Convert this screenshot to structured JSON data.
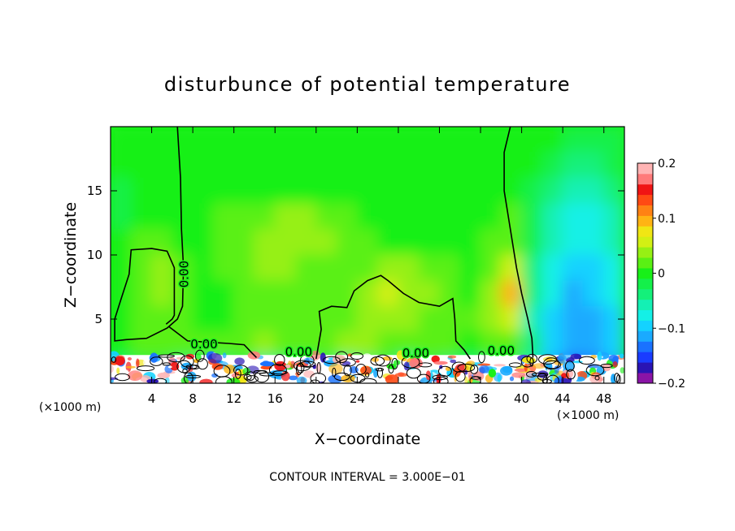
{
  "chart_data": {
    "type": "heatmap",
    "title": "disturbunce of potential temperature",
    "xlabel": "X−coordinate",
    "ylabel": "Z−coordinate",
    "x_unit_left": "(×1000 m)",
    "x_unit_right": "(×1000 m)",
    "footer": "CONTOUR INTERVAL = 3.000E−01",
    "xlim": [
      0,
      50
    ],
    "ylim": [
      0,
      20
    ],
    "x_ticks": [
      4,
      8,
      12,
      16,
      20,
      24,
      28,
      32,
      36,
      40,
      44,
      48
    ],
    "x_tick_labels": [
      "4",
      "8",
      "12",
      "16",
      "20",
      "24",
      "28",
      "32",
      "36",
      "40",
      "44",
      "48"
    ],
    "y_ticks": [
      5,
      10,
      15
    ],
    "y_tick_labels": [
      "5",
      "10",
      "15"
    ],
    "colorbar": {
      "range": [
        -0.2,
        0.2
      ],
      "tick_labels": [
        {
          "value": 0.2,
          "label": "0.2"
        },
        {
          "value": 0.1,
          "label": "0.1"
        },
        {
          "value": 0,
          "label": "0"
        },
        {
          "value": -0.1,
          "label": "−0.1"
        },
        {
          "value": -0.2,
          "label": "−0.2"
        }
      ],
      "colors": [
        "#8a14a6",
        "#2a14b4",
        "#1a3cff",
        "#1a72ff",
        "#1aaaff",
        "#14d2ff",
        "#14f0e6",
        "#14f0b4",
        "#14f07a",
        "#14f04a",
        "#18f018",
        "#5af014",
        "#96f014",
        "#d2f014",
        "#f0e614",
        "#ffb414",
        "#ff8214",
        "#ff4a14",
        "#f01414",
        "#ff7a7a",
        "#ffb4b4"
      ]
    },
    "contour_labels": [
      {
        "text": "0.00",
        "x": 7.2,
        "y": 8.5,
        "rotate": -90
      },
      {
        "text": "0.00",
        "x": 9.1,
        "y": 3.0
      },
      {
        "text": "0.00",
        "x": 18.3,
        "y": 2.4
      },
      {
        "text": "0.00",
        "x": 29.7,
        "y": 2.3
      },
      {
        "text": "0.00",
        "x": 38.0,
        "y": 2.5
      }
    ],
    "zero_contours": [
      [
        [
          6.5,
          20
        ],
        [
          6.8,
          16
        ],
        [
          6.9,
          12
        ],
        [
          7.1,
          9
        ],
        [
          7.0,
          6
        ],
        [
          6.5,
          5
        ],
        [
          5.5,
          4.3
        ],
        [
          3.5,
          3.5
        ],
        [
          1.5,
          3.4
        ],
        [
          0.4,
          3.3
        ],
        [
          0.4,
          5
        ],
        [
          1.0,
          6.5
        ],
        [
          1.8,
          8.5
        ],
        [
          2.0,
          10.4
        ],
        [
          4.0,
          10.5
        ],
        [
          5.5,
          10.3
        ],
        [
          6.2,
          9
        ],
        [
          6.2,
          5.3
        ],
        [
          6.0,
          5.0
        ],
        [
          5.4,
          4.6
        ]
      ],
      [
        [
          5.7,
          4.4
        ],
        [
          7.5,
          3.3
        ],
        [
          11.5,
          3.1
        ],
        [
          13.0,
          3.0
        ],
        [
          13.7,
          2.4
        ],
        [
          14.2,
          2.0
        ]
      ],
      [
        [
          20.0,
          1.9
        ],
        [
          20.5,
          4.2
        ],
        [
          20.3,
          5.6
        ],
        [
          21.5,
          6.0
        ],
        [
          23.0,
          5.9
        ],
        [
          23.7,
          7.2
        ],
        [
          25.0,
          8.0
        ],
        [
          26.3,
          8.4
        ],
        [
          27.0,
          8.0
        ],
        [
          28.5,
          7.0
        ],
        [
          30.0,
          6.3
        ],
        [
          32.0,
          6.0
        ],
        [
          33.3,
          6.6
        ],
        [
          33.5,
          5.0
        ],
        [
          33.6,
          3.3
        ],
        [
          34.4,
          2.6
        ],
        [
          35.0,
          1.9
        ]
      ],
      [
        [
          38.9,
          20
        ],
        [
          38.3,
          18
        ],
        [
          38.3,
          15
        ],
        [
          38.9,
          12
        ],
        [
          39.5,
          9
        ],
        [
          40.0,
          7
        ],
        [
          40.6,
          5
        ],
        [
          41.0,
          3.5
        ],
        [
          41.1,
          2.0
        ]
      ]
    ],
    "mean_field": [
      [
        0.0,
        0.0,
        0.0,
        0.0,
        0.0,
        0.0,
        0.0,
        0.0,
        0.0,
        0.0,
        0.0,
        0.0,
        0.0,
        0.0,
        0.0,
        0.0,
        0.0,
        0.0,
        0.0,
        0.0,
        0.0,
        0.0,
        -0.01,
        -0.02,
        -0.02
      ],
      [
        0.0,
        0.0,
        0.0,
        0.0,
        0.0,
        0.0,
        0.0,
        0.0,
        0.0,
        0.0,
        0.0,
        0.0,
        0.0,
        0.0,
        0.0,
        0.0,
        0.0,
        0.0,
        0.0,
        0.0,
        0.0,
        -0.02,
        -0.03,
        -0.03,
        -0.02
      ],
      [
        -0.02,
        0.0,
        0.0,
        0.0,
        0.0,
        0.0,
        0.0,
        0.0,
        0.0,
        0.0,
        0.0,
        0.0,
        0.0,
        0.0,
        0.0,
        0.0,
        0.0,
        0.0,
        0.0,
        0.0,
        -0.01,
        -0.03,
        -0.05,
        -0.05,
        -0.04
      ],
      [
        -0.01,
        0.0,
        0.0,
        0.0,
        0.0,
        0.01,
        0.01,
        0.02,
        0.03,
        0.03,
        0.02,
        0.01,
        0.0,
        0.0,
        0.0,
        0.0,
        0.0,
        0.0,
        0.0,
        0.01,
        -0.02,
        -0.05,
        -0.07,
        -0.07,
        -0.05
      ],
      [
        0.0,
        0.01,
        0.02,
        0.0,
        0.0,
        0.01,
        0.02,
        0.03,
        0.04,
        0.04,
        0.03,
        0.02,
        0.01,
        0.0,
        0.0,
        0.0,
        0.0,
        0.0,
        0.01,
        0.02,
        -0.02,
        -0.06,
        -0.08,
        -0.08,
        -0.06
      ],
      [
        0.0,
        0.02,
        0.04,
        0.01,
        0.0,
        0.01,
        0.02,
        0.03,
        0.03,
        0.02,
        0.01,
        0.01,
        0.02,
        0.03,
        0.03,
        0.02,
        0.01,
        0.0,
        0.02,
        0.05,
        -0.03,
        -0.07,
        -0.1,
        -0.09,
        -0.07
      ],
      [
        0.0,
        0.02,
        0.03,
        0.01,
        0.0,
        0.0,
        0.01,
        0.01,
        0.02,
        0.01,
        0.01,
        0.02,
        0.04,
        0.05,
        0.04,
        0.03,
        0.02,
        0.0,
        0.04,
        0.09,
        -0.04,
        -0.08,
        -0.11,
        -0.1,
        -0.08
      ],
      [
        0.0,
        0.01,
        0.01,
        0.01,
        0.0,
        0.0,
        0.01,
        0.01,
        0.01,
        0.01,
        0.02,
        0.02,
        0.03,
        0.03,
        0.03,
        0.02,
        0.01,
        0.01,
        0.03,
        0.06,
        -0.05,
        -0.1,
        -0.12,
        -0.11,
        -0.09
      ],
      [
        0.0,
        0.01,
        0.01,
        0.01,
        0.01,
        0.01,
        0.02,
        0.03,
        0.02,
        0.02,
        0.02,
        0.03,
        0.03,
        0.02,
        0.02,
        0.01,
        0.01,
        0.0,
        0.01,
        0.02,
        -0.04,
        -0.09,
        -0.12,
        -0.12,
        -0.1
      ],
      [
        -0.03,
        -0.02,
        -0.02,
        -0.03,
        -0.04,
        -0.03,
        -0.02,
        -0.05,
        -0.04,
        -0.03,
        -0.02,
        -0.06,
        -0.03,
        -0.02,
        -0.05,
        -0.02,
        -0.03,
        -0.04,
        -0.03,
        -0.02,
        -0.06,
        -0.12,
        -0.16,
        -0.14,
        -0.11
      ]
    ]
  }
}
